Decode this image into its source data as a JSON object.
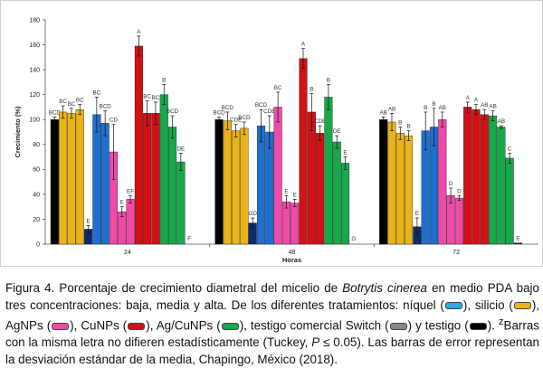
{
  "chart_data": {
    "type": "bar",
    "xlabel": "Horas",
    "ylabel": "Crecimiento (%)",
    "ylim": [
      0,
      180
    ],
    "yticks": [
      "0",
      "20",
      "40",
      "60",
      "80",
      "100",
      "120",
      "140",
      "160",
      "180"
    ],
    "categories": [
      "24",
      "48",
      "72"
    ],
    "grid": false,
    "groups": [
      {
        "label": "24",
        "bars": [
          {
            "v": 100,
            "e": 2,
            "l": "BCD",
            "c": "testigo"
          },
          {
            "v": 106,
            "e": 5,
            "l": "BC",
            "c": "silicio"
          },
          {
            "v": 105,
            "e": 4,
            "l": "BC",
            "c": "silicio"
          },
          {
            "v": 108,
            "e": 4,
            "l": "BC",
            "c": "silicio"
          },
          {
            "v": 12,
            "e": 3,
            "l": "E",
            "c": "switch"
          },
          {
            "v": 104,
            "e": 14,
            "l": "BC",
            "c": "niquel"
          },
          {
            "v": 97,
            "e": 10,
            "l": "BCD",
            "c": "niquel"
          },
          {
            "v": 74,
            "e": 22,
            "l": "CD",
            "c": "agnps"
          },
          {
            "v": 26,
            "e": 4,
            "l": "E",
            "c": "agnps"
          },
          {
            "v": 36,
            "e": 3,
            "l": "EF",
            "c": "agnps"
          },
          {
            "v": 159,
            "e": 8,
            "l": "A",
            "c": "cunps"
          },
          {
            "v": 105,
            "e": 10,
            "l": "BC",
            "c": "cunps"
          },
          {
            "v": 105,
            "e": 9,
            "l": "BC",
            "c": "cunps"
          },
          {
            "v": 120,
            "e": 8,
            "l": "B",
            "c": "agcunps"
          },
          {
            "v": 94,
            "e": 9,
            "l": "BCD",
            "c": "agcunps"
          },
          {
            "v": 66,
            "e": 7,
            "l": "DE",
            "c": "agcunps"
          },
          {
            "v": 0,
            "e": 0,
            "l": "F",
            "c": "switch"
          }
        ]
      },
      {
        "label": "48",
        "bars": [
          {
            "v": 100,
            "e": 2,
            "l": "BCD",
            "c": "testigo"
          },
          {
            "v": 99,
            "e": 7,
            "l": "BCD",
            "c": "silicio"
          },
          {
            "v": 91,
            "e": 5,
            "l": "CDE",
            "c": "silicio"
          },
          {
            "v": 93,
            "e": 5,
            "l": "BCD",
            "c": "silicio"
          },
          {
            "v": 17,
            "e": 4,
            "l": "GD",
            "c": "switch"
          },
          {
            "v": 95,
            "e": 13,
            "l": "BCD",
            "c": "niquel"
          },
          {
            "v": 90,
            "e": 13,
            "l": "CDE",
            "c": "niquel"
          },
          {
            "v": 110,
            "e": 12,
            "l": "BC",
            "c": "agnps"
          },
          {
            "v": 34,
            "e": 5,
            "l": "E",
            "c": "agnps"
          },
          {
            "v": 33,
            "e": 3,
            "l": "E",
            "c": "agnps"
          },
          {
            "v": 149,
            "e": 8,
            "l": "A",
            "c": "cunps"
          },
          {
            "v": 106,
            "e": 15,
            "l": "B",
            "c": "cunps"
          },
          {
            "v": 89,
            "e": 6,
            "l": "CDE",
            "c": "cunps"
          },
          {
            "v": 118,
            "e": 10,
            "l": "B",
            "c": "agcunps"
          },
          {
            "v": 82,
            "e": 5,
            "l": "DE",
            "c": "agcunps"
          },
          {
            "v": 65,
            "e": 5,
            "l": "E",
            "c": "agcunps"
          },
          {
            "v": 0,
            "e": 0,
            "l": "G",
            "c": "switch"
          }
        ]
      },
      {
        "label": "72",
        "bars": [
          {
            "v": 100,
            "e": 2,
            "l": "AB",
            "c": "testigo"
          },
          {
            "v": 98,
            "e": 7,
            "l": "AB",
            "c": "silicio"
          },
          {
            "v": 89,
            "e": 5,
            "l": "B",
            "c": "silicio"
          },
          {
            "v": 87,
            "e": 4,
            "l": "B",
            "c": "silicio"
          },
          {
            "v": 14,
            "e": 7,
            "l": "E",
            "c": "switch"
          },
          {
            "v": 91,
            "e": 15,
            "l": "B",
            "c": "niquel"
          },
          {
            "v": 94,
            "e": 15,
            "l": "B",
            "c": "niquel"
          },
          {
            "v": 100,
            "e": 6,
            "l": "AB",
            "c": "agnps"
          },
          {
            "v": 39,
            "e": 6,
            "l": "D",
            "c": "agnps"
          },
          {
            "v": 37,
            "e": 2,
            "l": "D",
            "c": "agnps"
          },
          {
            "v": 110,
            "e": 4,
            "l": "A",
            "c": "cunps"
          },
          {
            "v": 108,
            "e": 4,
            "l": "A",
            "c": "cunps"
          },
          {
            "v": 104,
            "e": 4,
            "l": "AB",
            "c": "cunps"
          },
          {
            "v": 103,
            "e": 4,
            "l": "AB",
            "c": "agcunps"
          },
          {
            "v": 94,
            "e": 1,
            "l": "AB",
            "c": "agcunps"
          },
          {
            "v": 69,
            "e": 4,
            "l": "C",
            "c": "agcunps"
          },
          {
            "v": 1,
            "e": 0,
            "l": "E",
            "c": "switch"
          }
        ]
      }
    ]
  },
  "colors": {
    "testigo": "#000000",
    "silicio": "#eab317",
    "switch": "#0d2a6b",
    "niquel": "#1f6fcf",
    "agnps": "#ef4aa7",
    "cunps": "#d31014",
    "agcunps": "#17a84a",
    "testigo_swatch": "#000000",
    "switch_swatch": "#888888",
    "niquel_swatch": "#29abe2"
  },
  "caption": {
    "p1": "Figura 4. Porcentaje de crecimiento diametral del micelio de ",
    "species": "Botrytis cinerea",
    "p2": " en medio PDA bajo tres concentraciones: baja, media y alta. De los diferentes tratamientos: níquel (",
    "p3": "), silicio (",
    "p4": "), AgNPs (",
    "p5": "), CuNPs (",
    "p6": "), Ag/CuNPs (",
    "p7": "), testigo comercial Switch (",
    "p8": ") y testigo (",
    "p9": "). ",
    "sup": "z",
    "p10": "Barras con la misma letra no difieren estadísticamente (Tuckey, ",
    "p_italic": "P",
    "p11": " ≤ 0.05). Las barras de error representan la desviación estándar de la media, Chapingo, México (2018)."
  }
}
